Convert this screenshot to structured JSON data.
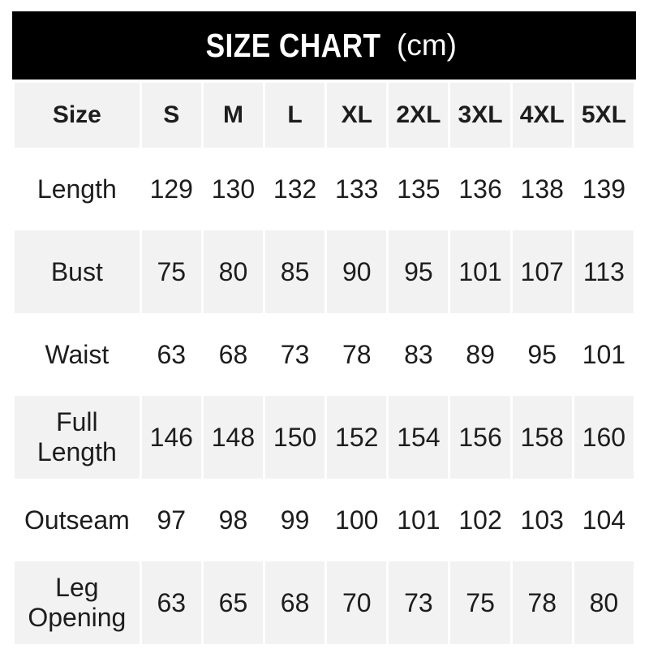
{
  "header": {
    "title_main": "SIZE CHART",
    "title_unit": "(cm)"
  },
  "chart_data": {
    "type": "table",
    "title": "SIZE CHART (cm)",
    "unit": "cm",
    "columns": [
      "Size",
      "S",
      "M",
      "L",
      "XL",
      "2XL",
      "3XL",
      "4XL",
      "5XL"
    ],
    "rows": [
      {
        "label": "Length",
        "values": [
          129,
          130,
          132,
          133,
          135,
          136,
          138,
          139
        ]
      },
      {
        "label": "Bust",
        "values": [
          75,
          80,
          85,
          90,
          95,
          101,
          107,
          113
        ]
      },
      {
        "label": "Waist",
        "values": [
          63,
          68,
          73,
          78,
          83,
          89,
          95,
          101
        ]
      },
      {
        "label": "Full Length",
        "values": [
          146,
          148,
          150,
          152,
          154,
          156,
          158,
          160
        ]
      },
      {
        "label": "Outseam",
        "values": [
          97,
          98,
          99,
          100,
          101,
          102,
          103,
          104
        ]
      },
      {
        "label": "Leg Opening",
        "values": [
          63,
          65,
          68,
          70,
          73,
          75,
          78,
          80
        ]
      }
    ],
    "layout": {
      "header_row_background": "#f2f2f2",
      "alternate_row_background": "#f2f2f2",
      "title_bar_background": "#000000",
      "title_text_color": "#ffffff",
      "body_text_color": "#1d1d1d"
    }
  }
}
